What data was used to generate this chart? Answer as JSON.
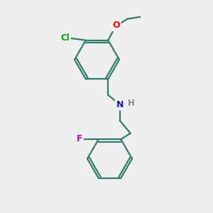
{
  "background_color": "#efefef",
  "bond_color": "#2e7d6a",
  "atom_colors": {
    "O": "#ff0000",
    "Cl": "#00aa00",
    "N": "#1a1acc",
    "F": "#cc00cc",
    "H_on_N": "#888888"
  }
}
